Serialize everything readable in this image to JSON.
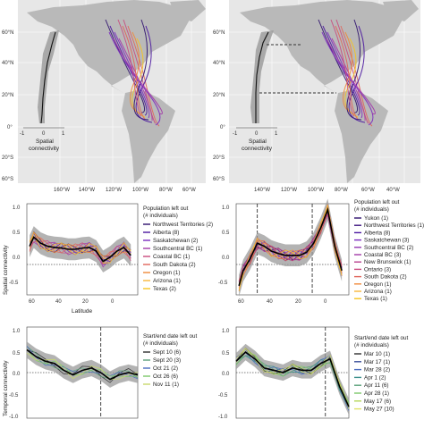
{
  "maps": {
    "lat_ticks": [
      "60°N",
      "40°N",
      "20°N",
      "0°",
      "20°S",
      "40°S",
      "60°S"
    ],
    "lon_ticks": [
      "160°W",
      "140°W",
      "120°W",
      "100°W",
      "80°W",
      "60°W",
      "40°W"
    ],
    "inset_ticks": [
      "-1",
      "0",
      "1"
    ],
    "inset_label_line1": "Spatial",
    "inset_label_line2": "connectivity",
    "colors": [
      "#2c0f6b",
      "#4b17a0",
      "#7b2cc0",
      "#a23aa8",
      "#c94a7e",
      "#e0655a",
      "#f08a3a",
      "#f7c41e"
    ],
    "land_color": "#b9b9b9",
    "ocean_color": "#e7e7e7"
  },
  "panels": {
    "c": {
      "ylabel": "Spatial connectivity",
      "xlabel": "Latitude",
      "legend_title_1": "Population left out",
      "legend_title_2": "(# individuals)",
      "legend": [
        {
          "label": "Northwest Territories (2)",
          "color": "#2c0f6b"
        },
        {
          "label": "Alberta (8)",
          "color": "#4b17a0"
        },
        {
          "label": "Saskatchewan (2)",
          "color": "#7b2cc0"
        },
        {
          "label": "Southcentral BC (1)",
          "color": "#a23aa8"
        },
        {
          "label": "Coastal BC (1)",
          "color": "#c94a7e"
        },
        {
          "label": "South Dakota (2)",
          "color": "#e0655a"
        },
        {
          "label": "Oregon (1)",
          "color": "#f08a3a"
        },
        {
          "label": "Arizona (1)",
          "color": "#f7b63a"
        },
        {
          "label": "Texas (2)",
          "color": "#f7c41e"
        }
      ]
    },
    "d": {
      "legend": [
        {
          "label": "Yukon (1)",
          "color": "#2c0f6b"
        },
        {
          "label": "Northwest Territories (1)",
          "color": "#3d137f"
        },
        {
          "label": "Alberta (8)",
          "color": "#4b17a0"
        },
        {
          "label": "Saskatchewan (3)",
          "color": "#7b2cc0"
        },
        {
          "label": "Southcentral BC (2)",
          "color": "#9336b0"
        },
        {
          "label": "Coastal BC (3)",
          "color": "#a23aa8"
        },
        {
          "label": "New Brunswick (1)",
          "color": "#b8428f"
        },
        {
          "label": "Ontario (3)",
          "color": "#c94a7e"
        },
        {
          "label": "South Dakota (2)",
          "color": "#e0655a"
        },
        {
          "label": "Oregon (1)",
          "color": "#f08a3a"
        },
        {
          "label": "Arizona (1)",
          "color": "#f7b63a"
        },
        {
          "label": "Texas (1)",
          "color": "#f7c41e"
        }
      ]
    },
    "e": {
      "ylabel": "Temporal connectivity",
      "legend_title_1": "Start/end date left out",
      "legend_title_2": "(# individuals)",
      "legend": [
        {
          "label": "Sept 10 (6)",
          "color": "#2f2f2f"
        },
        {
          "label": "Sept 20 (3)",
          "color": "#5aa07a"
        },
        {
          "label": "Oct 21 (2)",
          "color": "#4a6cc0"
        },
        {
          "label": "Oct 26 (6)",
          "color": "#7cc86a"
        },
        {
          "label": "Nov 11 (1)",
          "color": "#c9d96b"
        }
      ]
    },
    "f": {
      "legend_title_1": "Start/end date left out",
      "legend_title_2": "(# individuals)",
      "legend": [
        {
          "label": "Mar 10 (1)",
          "color": "#2f2f2f"
        },
        {
          "label": "Mar 17 (1)",
          "color": "#3a4f9a"
        },
        {
          "label": "Mar 28 (2)",
          "color": "#4a6cc0"
        },
        {
          "label": "Apr 1 (2)",
          "color": "#3c8f8c"
        },
        {
          "label": "Apr 11 (6)",
          "color": "#5aa07a"
        },
        {
          "label": "Apr 28 (1)",
          "color": "#7cc86a"
        },
        {
          "label": "May 17 (6)",
          "color": "#b5d75a"
        },
        {
          "label": "May 27 (10)",
          "color": "#e2e36a"
        }
      ]
    }
  },
  "chart_data": [
    {
      "type": "line",
      "panel": "c",
      "ylabel": "Spatial connectivity",
      "xlabel": "Latitude",
      "xlim": [
        60,
        -20
      ],
      "ylim": [
        -0.5,
        1.0
      ],
      "x_ticks": [
        60,
        40,
        20,
        0
      ],
      "y_ticks": [
        -0.5,
        0.0,
        0.5,
        1.0
      ],
      "x": [
        58,
        55,
        50,
        45,
        40,
        35,
        30,
        25,
        20,
        15,
        10,
        5,
        0,
        -5,
        -10,
        -15
      ],
      "series": [
        {
          "values": [
            0.3,
            0.45,
            0.35,
            0.3,
            0.28,
            0.27,
            0.25,
            0.25,
            0.27,
            0.28,
            0.22,
            0.05,
            0.12,
            0.22,
            0.28,
            0.15
          ]
        }
      ],
      "reference_line": 0
    },
    {
      "type": "line",
      "panel": "d",
      "xlim": [
        60,
        -20
      ],
      "ylim": [
        -0.5,
        1.0
      ],
      "y_ticks": [
        -0.5,
        0.0,
        0.5,
        1.0
      ],
      "vlines": [
        6,
        45
      ],
      "x": [
        58,
        55,
        50,
        45,
        40,
        35,
        30,
        25,
        20,
        15,
        10,
        5,
        0,
        -5,
        -10,
        -15
      ],
      "series": [
        {
          "values": [
            -0.35,
            -0.1,
            0.1,
            0.35,
            0.3,
            0.22,
            0.18,
            0.15,
            0.15,
            0.15,
            0.2,
            0.35,
            0.6,
            0.9,
            0.3,
            -0.1
          ]
        }
      ],
      "reference_line": 0
    },
    {
      "type": "line",
      "panel": "e",
      "ylabel": "Temporal connectivity",
      "ylim": [
        -1.0,
        1.0
      ],
      "y_ticks": [
        -1.0,
        -0.5,
        0.0,
        0.5,
        1.0
      ],
      "x": [
        0,
        1,
        2,
        3,
        4,
        5,
        6,
        7,
        8,
        9,
        10,
        11,
        12
      ],
      "vlines": [
        8
      ],
      "series": [
        {
          "values": [
            0.5,
            0.35,
            0.25,
            0.2,
            0.05,
            -0.05,
            0.05,
            0.1,
            0.0,
            -0.15,
            -0.05,
            0.0,
            -0.05
          ]
        }
      ],
      "reference_line": 0
    },
    {
      "type": "line",
      "panel": "f",
      "ylim": [
        -1.0,
        1.0
      ],
      "y_ticks": [
        -1.0,
        -0.5,
        0.0,
        0.5,
        1.0
      ],
      "x": [
        0,
        1,
        2,
        3,
        4,
        5,
        6,
        7,
        8,
        9,
        10,
        11,
        12
      ],
      "vlines": [
        9.5
      ],
      "series": [
        {
          "values": [
            0.25,
            0.45,
            0.3,
            0.1,
            0.05,
            0.0,
            0.1,
            0.05,
            0.05,
            0.2,
            0.3,
            -0.3,
            -0.75
          ]
        }
      ],
      "reference_line": 0
    }
  ]
}
